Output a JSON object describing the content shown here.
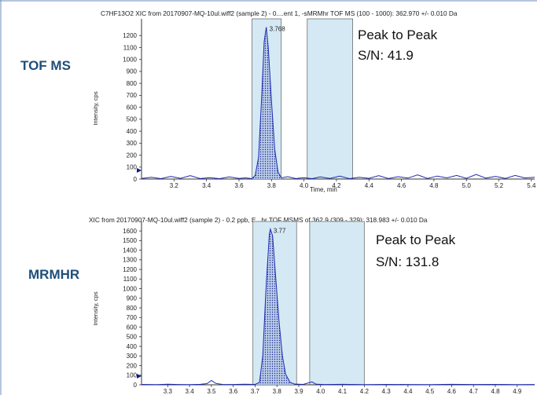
{
  "chart_data": [
    {
      "type": "line",
      "panel_label": "TOF MS",
      "title": "C7HF13O2 XIC from 20170907-MQ-10ul.wiff2 (sample 2) - 0....ent 1, -sMRMhr TOF MS (100 - 1000): 362.970 +/- 0.010 Da",
      "xlabel": "Time, min",
      "ylabel": "Intensity, cps",
      "xlim": [
        3.0,
        5.42
      ],
      "ylim": [
        0,
        1300
      ],
      "x_ticks": [
        "3.2",
        "3.4",
        "3.6",
        "3.8",
        "4.0",
        "4.2",
        "4.4",
        "4.6",
        "4.8",
        "5.0",
        "5.2",
        "5.4"
      ],
      "y_ticks": [
        "0",
        "100",
        "200",
        "300",
        "400",
        "500",
        "600",
        "700",
        "800",
        "900",
        "1000",
        "1100",
        "1200"
      ],
      "peak": {
        "x": 3.768,
        "y": 1270,
        "label": "3.768"
      },
      "shaded_regions": [
        [
          3.68,
          3.86
        ],
        [
          4.02,
          4.3
        ]
      ],
      "annotation": [
        "Peak to Peak",
        "S/N:  41.9"
      ],
      "series": [
        {
          "values": [
            [
              3.0,
              5
            ],
            [
              3.06,
              15
            ],
            [
              3.12,
              3
            ],
            [
              3.18,
              22
            ],
            [
              3.24,
              6
            ],
            [
              3.3,
              28
            ],
            [
              3.36,
              4
            ],
            [
              3.42,
              12
            ],
            [
              3.48,
              3
            ],
            [
              3.54,
              18
            ],
            [
              3.6,
              5
            ],
            [
              3.64,
              10
            ],
            [
              3.68,
              3
            ],
            [
              3.7,
              30
            ],
            [
              3.72,
              180
            ],
            [
              3.74,
              700
            ],
            [
              3.755,
              1150
            ],
            [
              3.768,
              1270
            ],
            [
              3.78,
              1100
            ],
            [
              3.8,
              650
            ],
            [
              3.82,
              250
            ],
            [
              3.84,
              60
            ],
            [
              3.86,
              10
            ],
            [
              3.9,
              20
            ],
            [
              3.95,
              4
            ],
            [
              4.0,
              12
            ],
            [
              4.05,
              3
            ],
            [
              4.1,
              18
            ],
            [
              4.16,
              5
            ],
            [
              4.22,
              24
            ],
            [
              4.28,
              3
            ],
            [
              4.34,
              15
            ],
            [
              4.4,
              6
            ],
            [
              4.46,
              28
            ],
            [
              4.52,
              4
            ],
            [
              4.58,
              20
            ],
            [
              4.64,
              8
            ],
            [
              4.7,
              35
            ],
            [
              4.76,
              5
            ],
            [
              4.82,
              25
            ],
            [
              4.88,
              10
            ],
            [
              4.94,
              30
            ],
            [
              5.0,
              6
            ],
            [
              5.06,
              38
            ],
            [
              5.12,
              8
            ],
            [
              5.18,
              22
            ],
            [
              5.24,
              5
            ],
            [
              5.3,
              30
            ],
            [
              5.36,
              9
            ],
            [
              5.42,
              15
            ]
          ]
        }
      ]
    },
    {
      "type": "line",
      "panel_label": "MRMHR",
      "title": "XIC from 20170907-MQ-10ul.wiff2 (sample 2) - 0.2 ppb, E...hr TOF MSMS of 362.9 (309 - 329): 318.983 +/- 0.010 Da",
      "ylabel": "Intensity, cps",
      "xlim": [
        3.18,
        4.98
      ],
      "ylim": [
        0,
        1650
      ],
      "x_ticks": [
        "3.3",
        "3.4",
        "3.5",
        "3.6",
        "3.7",
        "3.8",
        "3.9",
        "4.0",
        "4.1",
        "4.2",
        "4.3",
        "4.4",
        "4.5",
        "4.6",
        "4.7",
        "4.8",
        "4.9"
      ],
      "y_ticks": [
        "0",
        "100",
        "200",
        "300",
        "400",
        "500",
        "600",
        "700",
        "800",
        "900",
        "1000",
        "1100",
        "1200",
        "1300",
        "1400",
        "1500",
        "1600"
      ],
      "peak": {
        "x": 3.77,
        "y": 1620,
        "label": "3.77"
      },
      "shaded_regions": [
        [
          3.69,
          3.89
        ],
        [
          3.95,
          4.2
        ]
      ],
      "annotation": [
        "Peak to Peak",
        "S/N:  131.8"
      ],
      "series": [
        {
          "values": [
            [
              3.18,
              4
            ],
            [
              3.25,
              2
            ],
            [
              3.3,
              6
            ],
            [
              3.35,
              3
            ],
            [
              3.4,
              2
            ],
            [
              3.45,
              5
            ],
            [
              3.48,
              12
            ],
            [
              3.5,
              45
            ],
            [
              3.52,
              15
            ],
            [
              3.55,
              4
            ],
            [
              3.6,
              3
            ],
            [
              3.65,
              6
            ],
            [
              3.7,
              4
            ],
            [
              3.72,
              25
            ],
            [
              3.735,
              300
            ],
            [
              3.75,
              1000
            ],
            [
              3.765,
              1560
            ],
            [
              3.77,
              1620
            ],
            [
              3.78,
              1550
            ],
            [
              3.795,
              1100
            ],
            [
              3.81,
              650
            ],
            [
              3.825,
              300
            ],
            [
              3.84,
              110
            ],
            [
              3.86,
              25
            ],
            [
              3.88,
              8
            ],
            [
              3.92,
              4
            ],
            [
              3.96,
              30
            ],
            [
              3.98,
              6
            ],
            [
              4.02,
              3
            ],
            [
              4.1,
              5
            ],
            [
              4.2,
              2
            ],
            [
              4.3,
              4
            ],
            [
              4.4,
              3
            ],
            [
              4.5,
              2
            ],
            [
              4.6,
              5
            ],
            [
              4.7,
              3
            ],
            [
              4.8,
              4
            ],
            [
              4.9,
              2
            ],
            [
              4.98,
              3
            ]
          ]
        }
      ]
    }
  ]
}
